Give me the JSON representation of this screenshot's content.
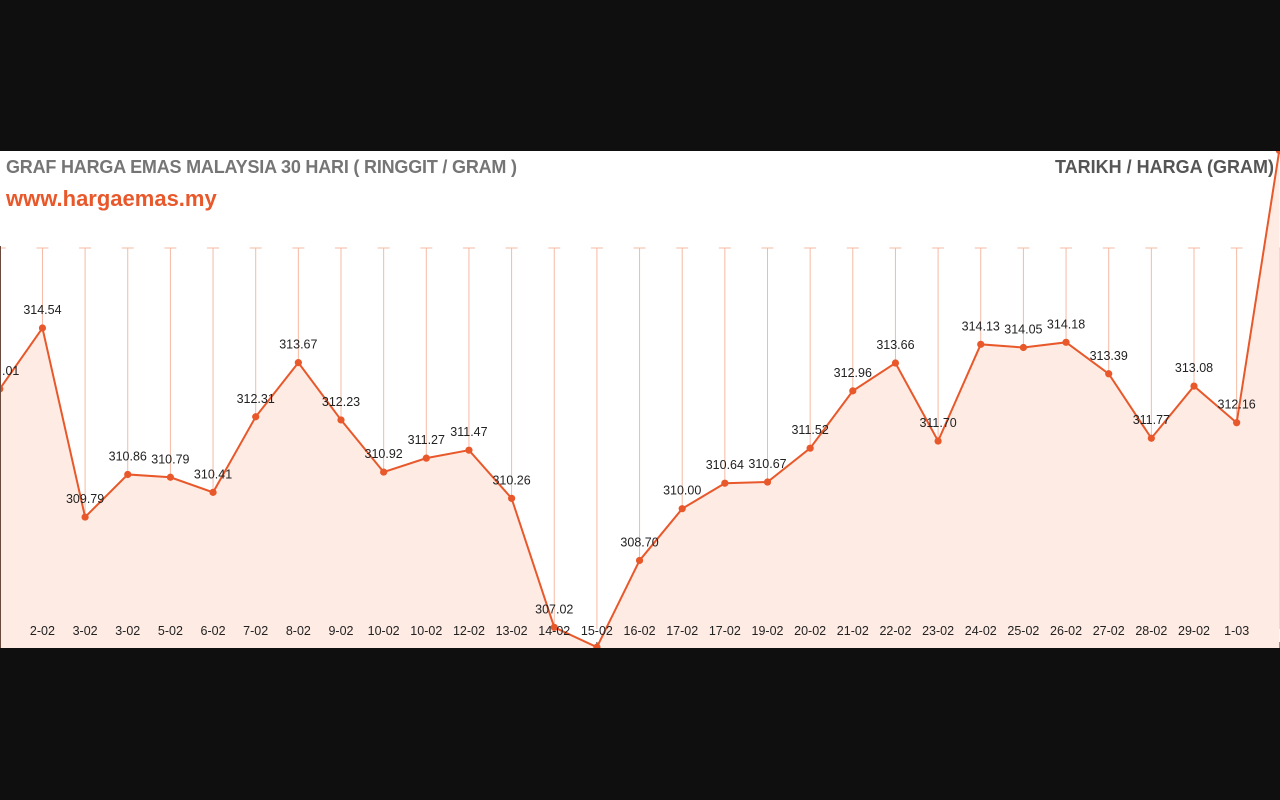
{
  "header": {
    "title": "GRAF HARGA EMAS MALAYSIA 30 HARI ( RINGGIT / GRAM )",
    "site": "www.hargaemas.my",
    "legend": "TARIKH / HARGA (GRAM)"
  },
  "colors": {
    "line": "#e8582a",
    "fill": "#fdebe4",
    "grid": "#f6b9a3",
    "title": "#757575",
    "site": "#e8582a",
    "background": "#0f0f0f"
  },
  "chart_data": {
    "type": "area",
    "title": "GRAF HARGA EMAS MALAYSIA 30 HARI ( RINGGIT / GRAM )",
    "xlabel": "TARIKH",
    "ylabel": "HARGA (GRAM)",
    "categories": [
      "",
      "2-02",
      "3-02",
      "3-02",
      "5-02",
      "6-02",
      "7-02",
      "8-02",
      "9-02",
      "10-02",
      "10-02",
      "12-02",
      "13-02",
      "14-02",
      "15-02",
      "16-02",
      "17-02",
      "17-02",
      "19-02",
      "20-02",
      "21-02",
      "22-02",
      "23-02",
      "24-02",
      "25-02",
      "26-02",
      "27-02",
      "28-02",
      "29-02",
      "1-03",
      ""
    ],
    "values": [
      313.01,
      314.54,
      309.79,
      310.86,
      310.79,
      310.41,
      312.31,
      313.67,
      312.23,
      310.92,
      311.27,
      311.47,
      310.26,
      307.02,
      306.52,
      308.7,
      310.0,
      310.64,
      310.67,
      311.52,
      312.96,
      313.66,
      311.7,
      314.13,
      314.05,
      314.18,
      313.39,
      311.77,
      313.08,
      312.16,
      319.0
    ],
    "value_labels": [
      ".01",
      "314.54",
      "309.79",
      "310.86",
      "310.79",
      "310.41",
      "312.31",
      "313.67",
      "312.23",
      "310.92",
      "311.27",
      "311.47",
      "310.26",
      "307.02",
      "",
      "308.70",
      "310.00",
      "310.64",
      "310.67",
      "311.52",
      "312.96",
      "313.66",
      "311.70",
      "314.13",
      "314.05",
      "314.18",
      "313.39",
      "311.77",
      "313.08",
      "312.16",
      ""
    ],
    "grid": true,
    "legend_position": "top-right"
  }
}
